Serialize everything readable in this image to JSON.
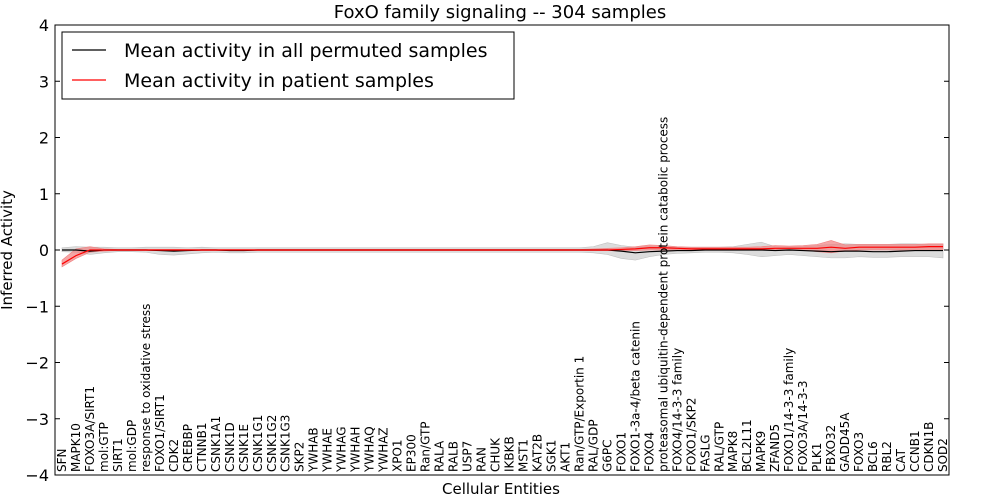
{
  "chart_data": {
    "type": "line",
    "title": "FoxO family signaling -- 304 samples",
    "xlabel": "Cellular Entities",
    "ylabel": "Inferred Activity",
    "ylim": [
      -4,
      4
    ],
    "yticks": [
      4,
      3,
      2,
      1,
      0,
      -1,
      -2,
      -3,
      -4
    ],
    "ytick_labels": [
      "4",
      "3",
      "2",
      "1",
      "0",
      "−1",
      "−2",
      "−3",
      "−4"
    ],
    "legend_position": "top-left",
    "categories": [
      "SFN",
      "MAPK10",
      "FOXO3A/SIRT1",
      "mol:GTP",
      "SIRT1",
      "mol:GDP",
      "response to oxidative stress",
      "FOXO1/SIRT1",
      "CDK2",
      "CREBBP",
      "CTNNB1",
      "CSNK1A1",
      "CSNK1D",
      "CSNK1E",
      "CSNK1G1",
      "CSNK1G2",
      "CSNK1G3",
      "SKP2",
      "YWHAB",
      "YWHAE",
      "YWHAG",
      "YWHAH",
      "YWHAQ",
      "YWHAZ",
      "XPO1",
      "EP300",
      "Ran/GTP",
      "RALA",
      "RALB",
      "USP7",
      "RAN",
      "CHUK",
      "IKBKB",
      "MST1",
      "KAT2B",
      "SGK1",
      "AKT1",
      "Ran/GTP/Exportin 1",
      "RAL/GDP",
      "G6PC",
      "FOXO1",
      "FOXO1-3a-4/beta catenin",
      "FOXO4",
      "proteasomal ubiquitin-dependent protein catabolic process",
      "FOXO4/14-3-3 family",
      "FOXO1/SKP2",
      "FASLG",
      "RAL/GTP",
      "MAPK8",
      "BCL2L11",
      "MAPK9",
      "ZFAND5",
      "FOXO1/14-3-3 family",
      "FOXO3A/14-3-3",
      "PLK1",
      "FBXO32",
      "GADD45A",
      "FOXO3",
      "BCL6",
      "RBL2",
      "CAT",
      "CCNB1",
      "CDKN1B",
      "SOD2"
    ],
    "series": [
      {
        "name": "Mean activity in all permuted samples",
        "color": "#000000",
        "band_color": "#bfbfbf",
        "values": [
          0.0,
          0.0,
          -0.02,
          0.0,
          0.0,
          0.0,
          0.0,
          -0.01,
          -0.02,
          -0.01,
          0.0,
          0.0,
          -0.01,
          -0.01,
          0.0,
          0.0,
          0.0,
          0.0,
          0.0,
          0.0,
          0.0,
          0.0,
          0.0,
          0.0,
          0.0,
          0.0,
          0.0,
          0.0,
          0.0,
          0.0,
          0.0,
          0.0,
          0.0,
          0.0,
          0.0,
          0.0,
          0.0,
          0.0,
          0.0,
          0.0,
          -0.02,
          -0.05,
          -0.03,
          -0.02,
          -0.01,
          -0.01,
          0.0,
          0.0,
          0.0,
          0.0,
          0.0,
          -0.01,
          0.0,
          -0.01,
          -0.02,
          -0.03,
          -0.02,
          -0.02,
          -0.03,
          -0.03,
          -0.02,
          -0.01,
          -0.01,
          -0.01
        ],
        "lower": [
          -0.03,
          -0.04,
          -0.08,
          -0.05,
          -0.03,
          -0.03,
          -0.04,
          -0.08,
          -0.09,
          -0.07,
          -0.05,
          -0.04,
          -0.05,
          -0.05,
          -0.04,
          -0.04,
          -0.04,
          -0.04,
          -0.04,
          -0.04,
          -0.04,
          -0.04,
          -0.04,
          -0.04,
          -0.04,
          -0.04,
          -0.04,
          -0.04,
          -0.04,
          -0.04,
          -0.04,
          -0.04,
          -0.04,
          -0.04,
          -0.04,
          -0.04,
          -0.04,
          -0.04,
          -0.05,
          -0.08,
          -0.15,
          -0.18,
          -0.12,
          -0.08,
          -0.06,
          -0.05,
          -0.04,
          -0.04,
          -0.05,
          -0.08,
          -0.12,
          -0.1,
          -0.08,
          -0.1,
          -0.12,
          -0.14,
          -0.14,
          -0.12,
          -0.13,
          -0.13,
          -0.12,
          -0.12,
          -0.12,
          -0.14
        ],
        "upper": [
          0.04,
          0.06,
          0.05,
          0.05,
          0.04,
          0.04,
          0.05,
          0.05,
          0.05,
          0.04,
          0.05,
          0.04,
          0.04,
          0.04,
          0.04,
          0.04,
          0.04,
          0.04,
          0.04,
          0.04,
          0.04,
          0.04,
          0.04,
          0.04,
          0.04,
          0.04,
          0.04,
          0.04,
          0.04,
          0.04,
          0.04,
          0.04,
          0.04,
          0.04,
          0.04,
          0.04,
          0.04,
          0.04,
          0.06,
          0.13,
          0.08,
          0.05,
          0.06,
          0.05,
          0.05,
          0.05,
          0.05,
          0.05,
          0.06,
          0.1,
          0.14,
          0.06,
          0.05,
          0.06,
          0.08,
          0.1,
          0.11,
          0.1,
          0.1,
          0.1,
          0.11,
          0.11,
          0.1,
          0.11
        ]
      },
      {
        "name": "Mean activity in patient samples",
        "color": "#ff0000",
        "band_color": "#f08080",
        "values": [
          -0.25,
          -0.1,
          0.0,
          0.0,
          0.0,
          0.0,
          0.0,
          0.0,
          0.0,
          0.0,
          0.0,
          0.0,
          0.0,
          0.0,
          0.0,
          0.0,
          0.0,
          0.0,
          0.0,
          0.0,
          0.0,
          0.0,
          0.0,
          0.0,
          0.0,
          0.0,
          0.0,
          0.0,
          0.0,
          0.0,
          0.0,
          0.0,
          0.0,
          0.0,
          0.0,
          0.0,
          0.0,
          0.0,
          0.0,
          0.0,
          0.01,
          0.02,
          0.04,
          0.04,
          0.03,
          0.02,
          0.02,
          0.02,
          0.02,
          0.02,
          0.02,
          0.03,
          0.03,
          0.03,
          0.03,
          0.05,
          0.03,
          0.05,
          0.05,
          0.05,
          0.05,
          0.05,
          0.06,
          0.06
        ],
        "lower": [
          -0.3,
          -0.15,
          -0.04,
          -0.02,
          -0.01,
          -0.01,
          -0.01,
          -0.01,
          -0.01,
          -0.01,
          -0.01,
          -0.01,
          -0.01,
          -0.01,
          -0.01,
          -0.01,
          -0.01,
          -0.01,
          -0.01,
          -0.01,
          -0.01,
          -0.01,
          -0.01,
          -0.01,
          -0.01,
          -0.01,
          -0.01,
          -0.01,
          -0.01,
          -0.01,
          -0.01,
          -0.01,
          -0.01,
          -0.01,
          -0.01,
          -0.01,
          -0.01,
          -0.01,
          -0.01,
          -0.01,
          -0.01,
          -0.01,
          0.0,
          0.0,
          0.0,
          0.0,
          0.0,
          0.0,
          0.0,
          0.0,
          0.0,
          0.0,
          0.0,
          0.0,
          -0.03,
          -0.05,
          -0.02,
          0.0,
          0.0,
          0.0,
          0.0,
          0.0,
          0.0,
          0.0
        ],
        "upper": [
          -0.18,
          0.02,
          0.06,
          0.02,
          0.01,
          0.01,
          0.01,
          0.01,
          0.01,
          0.01,
          0.01,
          0.01,
          0.01,
          0.01,
          0.01,
          0.01,
          0.01,
          0.01,
          0.01,
          0.01,
          0.01,
          0.01,
          0.01,
          0.01,
          0.01,
          0.01,
          0.01,
          0.01,
          0.01,
          0.01,
          0.01,
          0.01,
          0.01,
          0.01,
          0.01,
          0.01,
          0.01,
          0.01,
          0.02,
          0.03,
          0.04,
          0.06,
          0.09,
          0.08,
          0.06,
          0.05,
          0.05,
          0.05,
          0.05,
          0.05,
          0.06,
          0.08,
          0.07,
          0.08,
          0.1,
          0.17,
          0.09,
          0.1,
          0.1,
          0.1,
          0.1,
          0.1,
          0.11,
          0.11
        ]
      }
    ]
  }
}
